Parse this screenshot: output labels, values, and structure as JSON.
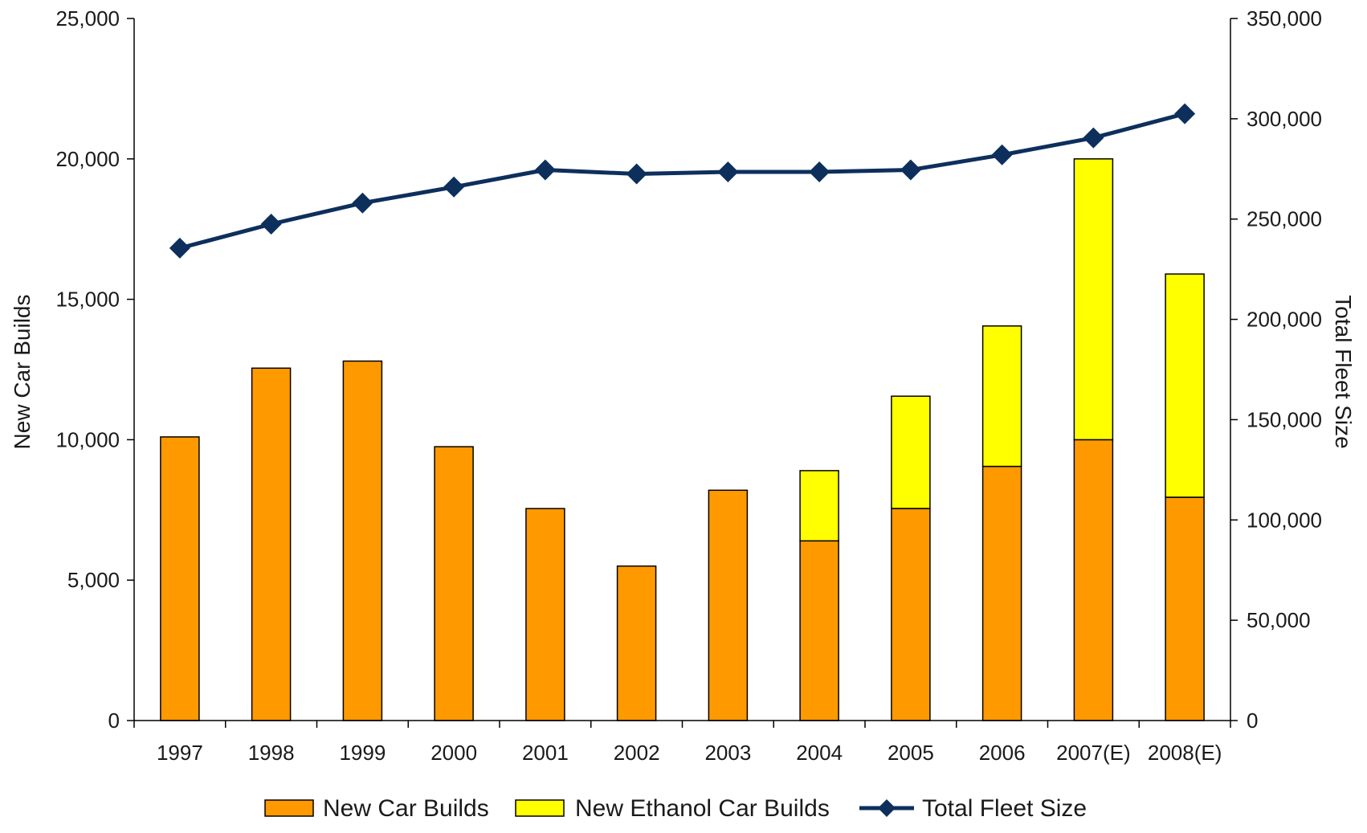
{
  "chart_data": {
    "type": "bar",
    "stacked": true,
    "categories": [
      "1997",
      "1998",
      "1999",
      "2000",
      "2001",
      "2002",
      "2003",
      "2004",
      "2005",
      "2006",
      "2007(E)",
      "2008(E)"
    ],
    "series": [
      {
        "name": "New Car Builds",
        "type": "bar",
        "axis": "left",
        "color": "#FF9900",
        "values": [
          10100,
          12550,
          12800,
          9750,
          7550,
          5500,
          8200,
          6400,
          7550,
          9050,
          10000,
          7950
        ]
      },
      {
        "name": "New Ethanol Car Builds",
        "type": "bar",
        "axis": "left",
        "color": "#FFFF00",
        "values": [
          0,
          0,
          0,
          0,
          0,
          0,
          0,
          2500,
          4000,
          5000,
          10000,
          7950
        ]
      },
      {
        "name": "Total Fleet Size",
        "type": "line",
        "axis": "right",
        "color": "#0D2F5C",
        "marker": "diamond",
        "values": [
          235500,
          247500,
          258000,
          266000,
          274500,
          272500,
          273500,
          273500,
          274500,
          282000,
          290500,
          302500
        ]
      }
    ],
    "ylabel": "New Car Builds",
    "y2label": "Total Fleet Size",
    "ylim": [
      0,
      25000
    ],
    "y2lim": [
      0,
      350000
    ],
    "yticks": [
      "0",
      "5,000",
      "10,000",
      "15,000",
      "20,000",
      "25,000"
    ],
    "y2ticks": [
      "0",
      "50,000",
      "100,000",
      "150,000",
      "200,000",
      "250,000",
      "300,000",
      "350,000"
    ],
    "grid": false,
    "legend": "bottom"
  }
}
